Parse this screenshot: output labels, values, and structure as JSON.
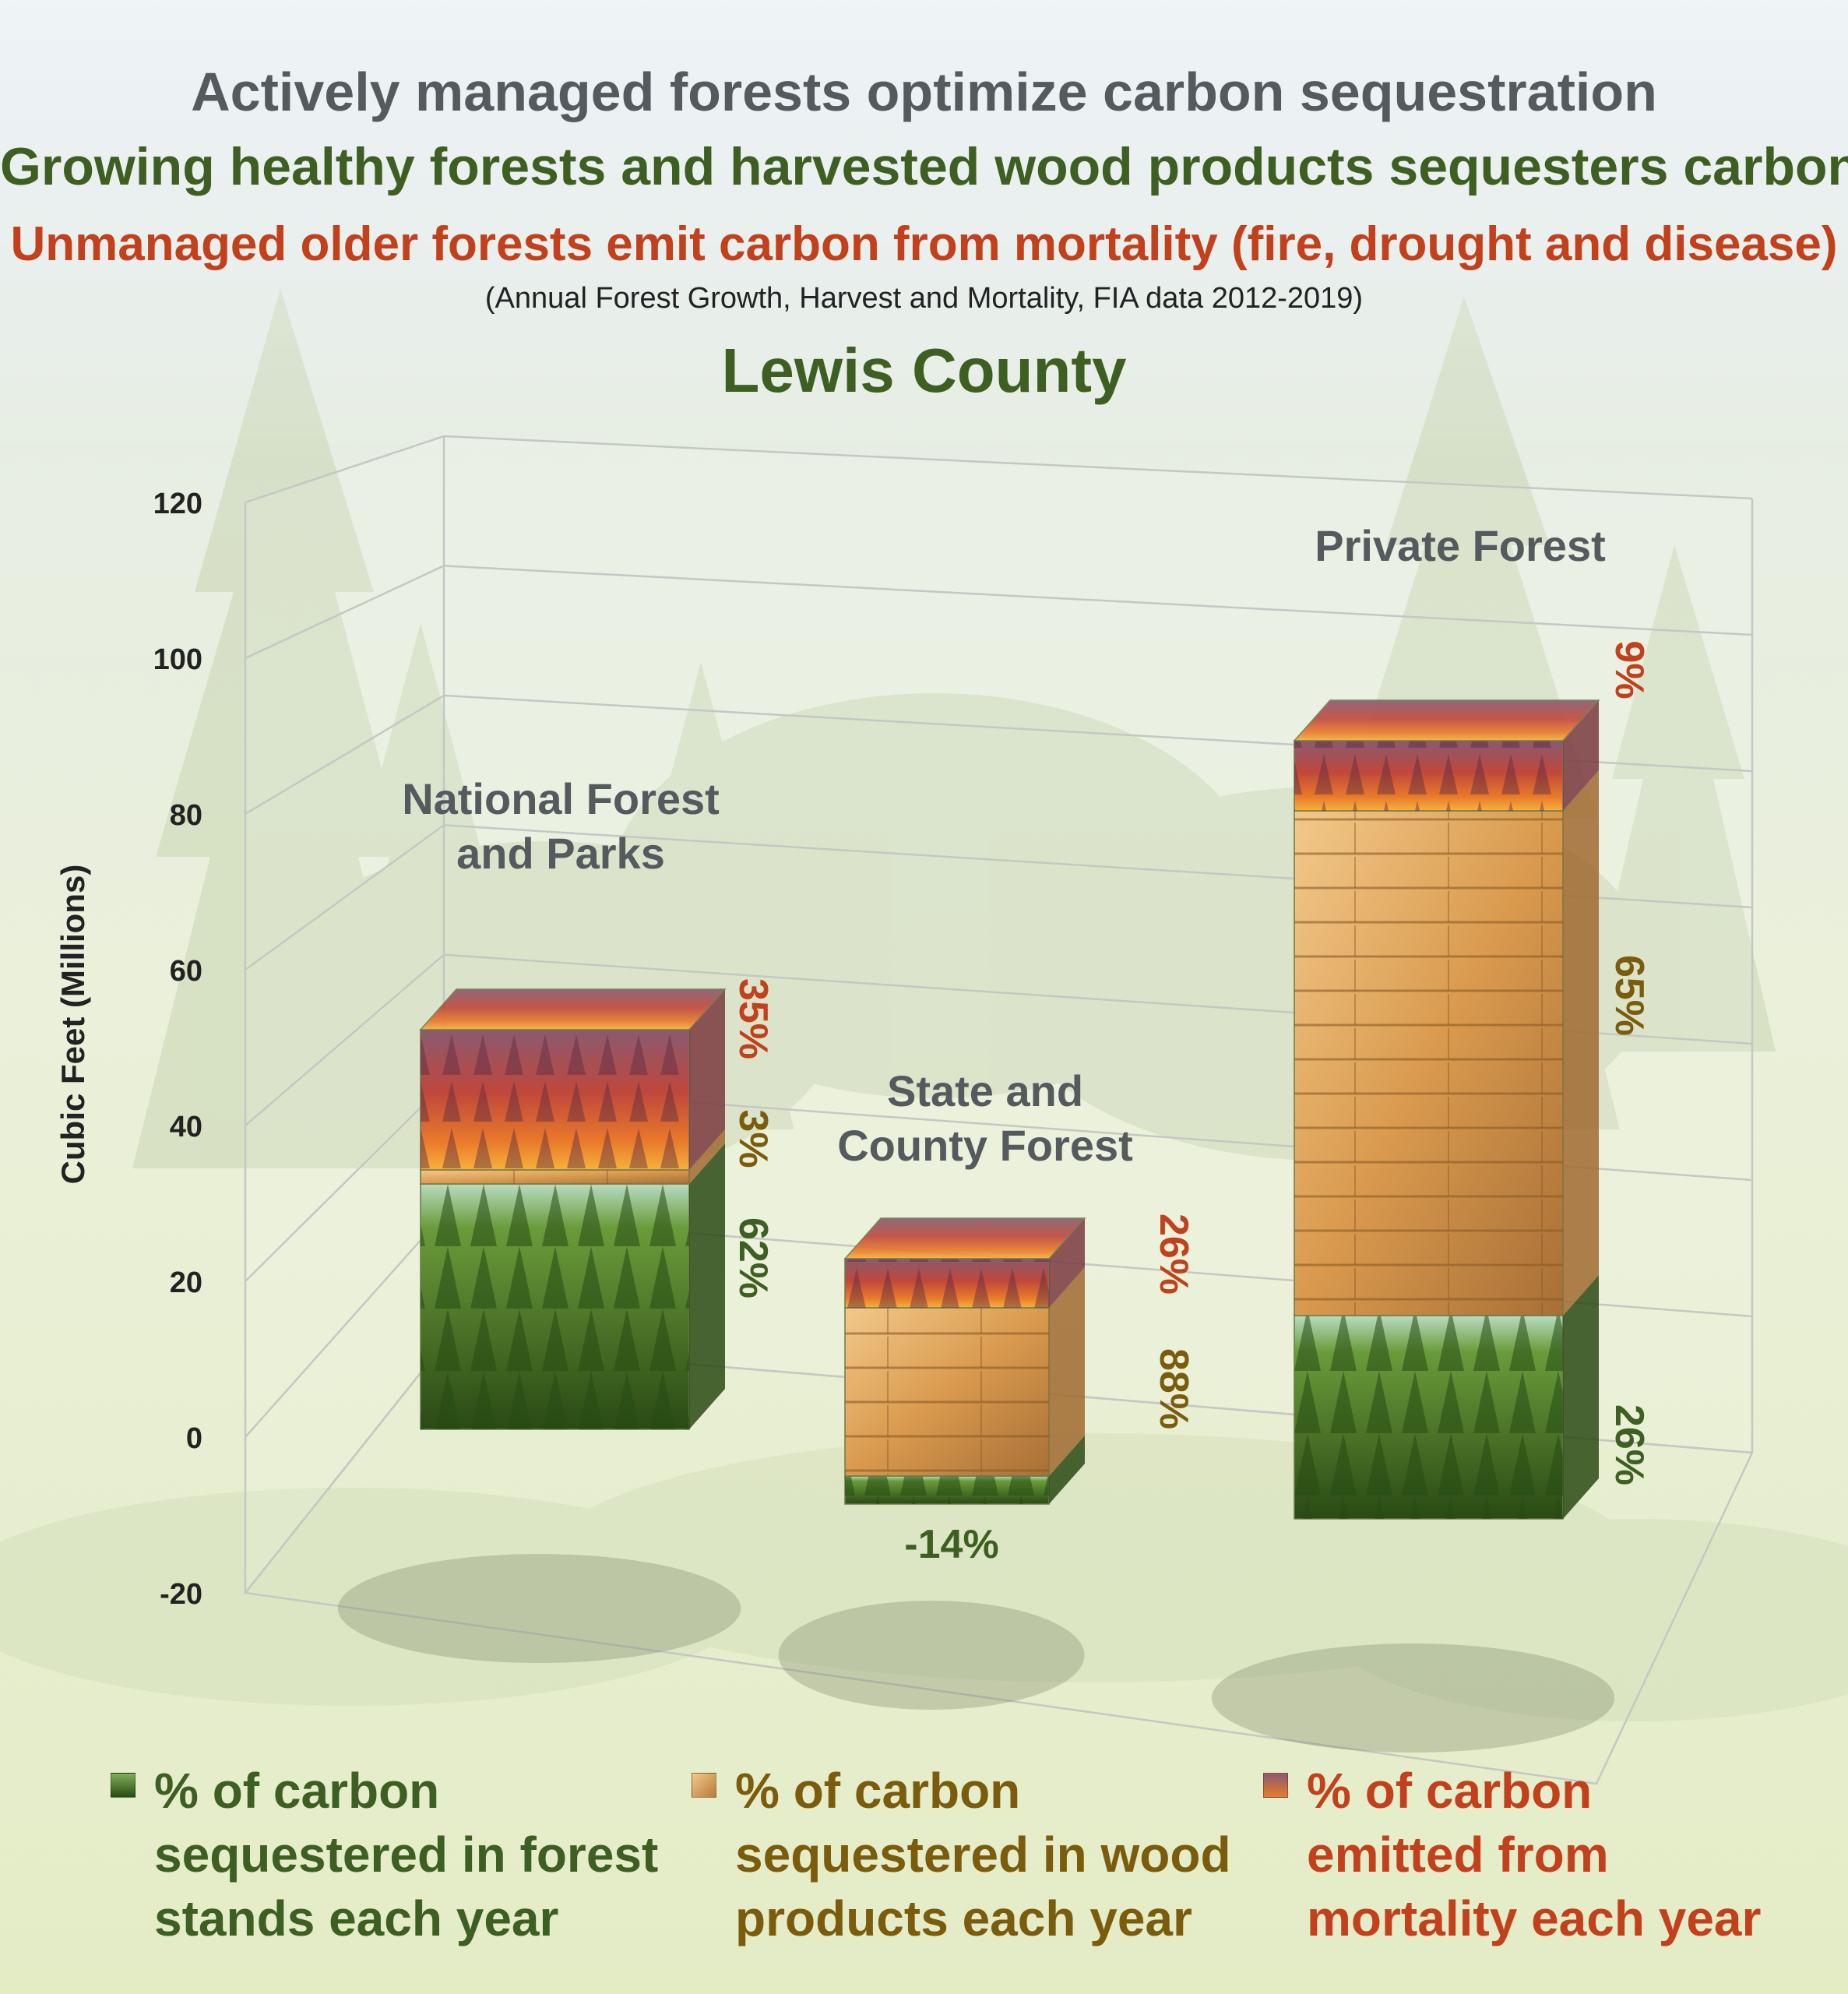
{
  "titles": {
    "line1": "Actively managed forests optimize carbon sequestration",
    "line2": "Growing healthy forests and harvested wood products sequesters carbon",
    "line3": "Unmanaged older forests emit carbon from mortality (fire, drought and disease)",
    "subtitle": "(Annual Forest Growth, Harvest and Mortality, FIA data 2012-2019)",
    "county": "Lewis County"
  },
  "colors": {
    "forest": "#3d5f22",
    "wood": "#7a5c0c",
    "mortality": "#c2401b",
    "axis_text": "#222222",
    "category_text": "#555a5f"
  },
  "legend": [
    {
      "key": "forest",
      "lines": [
        "% of carbon",
        "sequestered in forest",
        "stands each year"
      ]
    },
    {
      "key": "wood",
      "lines": [
        "% of carbon",
        "sequestered in wood",
        "products each year"
      ]
    },
    {
      "key": "mortality",
      "lines": [
        "% of carbon",
        "emitted from",
        "mortality each year"
      ]
    }
  ],
  "chart_data": {
    "type": "bar",
    "stacked": true,
    "style": "3d",
    "ylabel": "Cubic Feet (Millions)",
    "ylim": [
      -20,
      120
    ],
    "yticks": [
      -20,
      0,
      20,
      40,
      60,
      80,
      100,
      120
    ],
    "grid": true,
    "categories": [
      {
        "label_lines": [
          "National Forest",
          "and Parks"
        ]
      },
      {
        "label_lines": [
          "State and",
          "County Forest"
        ]
      },
      {
        "label_lines": [
          "Private Forest"
        ]
      }
    ],
    "series": [
      {
        "key": "forest",
        "values": [
          35,
          -4,
          29
        ],
        "pct_labels": [
          "62%",
          "-14%",
          "26%"
        ]
      },
      {
        "key": "wood",
        "values": [
          2,
          24,
          72
        ],
        "pct_labels": [
          "3%",
          "88%",
          "65%"
        ]
      },
      {
        "key": "mortality",
        "values": [
          20,
          7,
          10
        ],
        "pct_labels": [
          "35%",
          "26%",
          "9%"
        ]
      }
    ]
  }
}
